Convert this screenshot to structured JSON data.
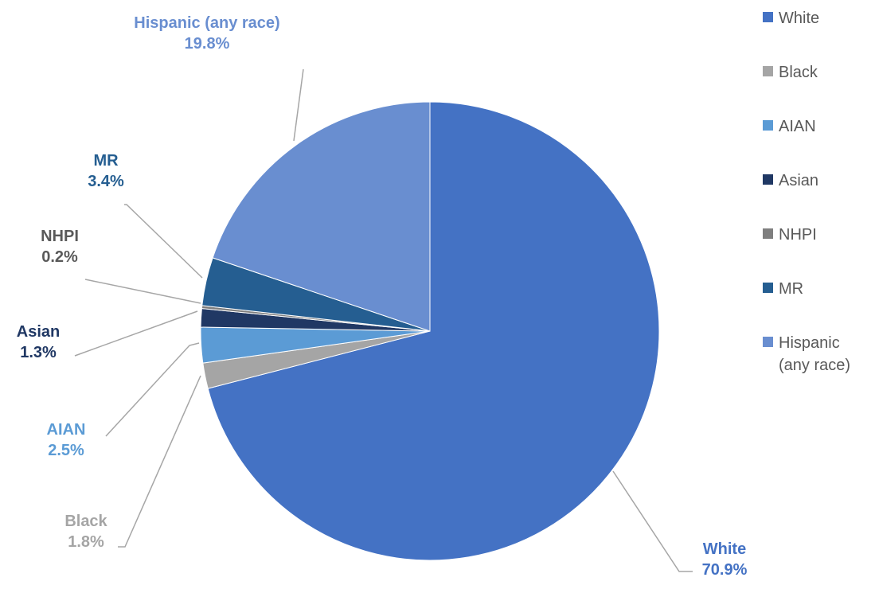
{
  "chart_data": {
    "type": "pie",
    "categories": [
      "White",
      "Black",
      "AIAN",
      "Asian",
      "NHPI",
      "MR",
      "Hispanic (any race)"
    ],
    "values": [
      70.9,
      1.8,
      2.5,
      1.3,
      0.2,
      3.4,
      19.8
    ],
    "value_labels": [
      "70.9%",
      "1.8%",
      "2.5%",
      "1.3%",
      "0.2%",
      "3.4%",
      "19.8%"
    ],
    "label_names": [
      "White",
      "Black",
      "AIAN",
      "Asian",
      "NHPI",
      "MR",
      "Hispanic (any race)"
    ],
    "legend_labels": [
      [
        "White"
      ],
      [
        "Black"
      ],
      [
        "AIAN"
      ],
      [
        "Asian"
      ],
      [
        "NHPI"
      ],
      [
        "MR"
      ],
      [
        "Hispanic",
        "(any race)"
      ]
    ],
    "colors": [
      "#4472C4",
      "#A5A5A5",
      "#5B9BD5",
      "#203864",
      "#7F7F7F",
      "#255E91",
      "#698ED0"
    ],
    "label_colors": [
      "#4472C4",
      "#A5A5A5",
      "#5B9BD5",
      "#203864",
      "#595959",
      "#255E91",
      "#698ED0"
    ],
    "start_angle_deg": 0,
    "direction": "clockwise",
    "legend_position": "right",
    "title": ""
  }
}
